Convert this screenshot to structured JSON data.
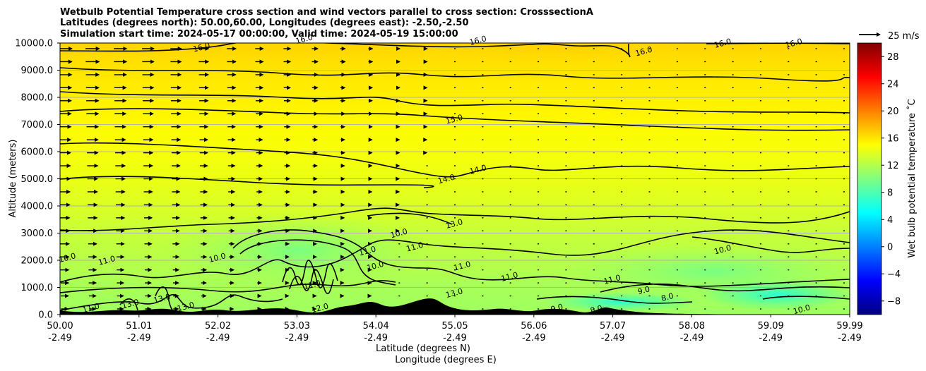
{
  "chart_data": {
    "type": "heatmap",
    "title_lines": [
      "Wetbulb Potential Temperature cross section and wind vectors parallel to cross section: CrosssectionA",
      "Latitudes (degrees north): 50.00,60.00, Longitudes (degrees east): -2.50,-2.50",
      "Simulation start time: 2024-05-17 00:00:00, Valid time: 2024-05-19 15:00:00"
    ],
    "ylabel": "Altitude (meters)",
    "xlabel_lines": [
      "Latitude (degrees N)",
      "Longitude (degrees E)"
    ],
    "ylim": [
      0,
      10000
    ],
    "yticks": [
      "0.0",
      "1000.0",
      "2000.0",
      "3000.0",
      "4000.0",
      "5000.0",
      "6000.0",
      "7000.0",
      "8000.0",
      "9000.0",
      "10000.0"
    ],
    "xticks": [
      {
        "lat": "50.00",
        "lon": "-2.49"
      },
      {
        "lat": "51.01",
        "lon": "-2.49"
      },
      {
        "lat": "52.02",
        "lon": "-2.49"
      },
      {
        "lat": "53.03",
        "lon": "-2.49"
      },
      {
        "lat": "54.04",
        "lon": "-2.49"
      },
      {
        "lat": "55.05",
        "lon": "-2.49"
      },
      {
        "lat": "56.06",
        "lon": "-2.49"
      },
      {
        "lat": "57.07",
        "lon": "-2.49"
      },
      {
        "lat": "58.08",
        "lon": "-2.49"
      },
      {
        "lat": "59.09",
        "lon": "-2.49"
      },
      {
        "lat": "59.99",
        "lon": "-2.49"
      }
    ],
    "grid": "horizontal",
    "colorbar": {
      "label": "Wet bulb potential temperature ˚C",
      "range": [
        -10,
        30
      ],
      "ticks": [
        "−8",
        "−4",
        "0",
        "4",
        "8",
        "12",
        "16",
        "20",
        "24",
        "28"
      ],
      "colormap": "jet"
    },
    "quiver_key": {
      "label": "25 m/s",
      "speed": 25,
      "placement": "top-right"
    },
    "contour_levels": [
      8,
      9,
      10,
      11,
      12,
      13,
      14,
      15,
      16
    ],
    "contour_labels": [
      {
        "text": "16.0",
        "x": 0.18,
        "y": 9750
      },
      {
        "text": "16.0",
        "x": 0.31,
        "y": 10050
      },
      {
        "text": "16.0",
        "x": 0.53,
        "y": 10000
      },
      {
        "text": "16.0",
        "x": 0.74,
        "y": 9600
      },
      {
        "text": "16.0",
        "x": 0.84,
        "y": 9900
      },
      {
        "text": "16.0",
        "x": 0.93,
        "y": 9900
      },
      {
        "text": "15.0",
        "x": 0.5,
        "y": 7100
      },
      {
        "text": "14.0",
        "x": 0.49,
        "y": 4900
      },
      {
        "text": "14.0",
        "x": 0.53,
        "y": 5250
      },
      {
        "text": "13.0",
        "x": 0.5,
        "y": 3250
      },
      {
        "text": "12.0",
        "x": 0.33,
        "y": 150
      },
      {
        "text": "11.0",
        "x": 0.04,
        "y": 150
      },
      {
        "text": "11.0",
        "x": 0.06,
        "y": 1900
      },
      {
        "text": "11.0",
        "x": 0.39,
        "y": 2250
      },
      {
        "text": "11.0",
        "x": 0.32,
        "y": 1000
      },
      {
        "text": "11.0",
        "x": 0.45,
        "y": 2400
      },
      {
        "text": "11.0",
        "x": 0.51,
        "y": 1700
      },
      {
        "text": "11.0",
        "x": 0.57,
        "y": 1300
      },
      {
        "text": "11.0",
        "x": 0.7,
        "y": 1200
      },
      {
        "text": "10.0",
        "x": 0.01,
        "y": 2000
      },
      {
        "text": "10.0",
        "x": 0.2,
        "y": 2000
      },
      {
        "text": "10.0",
        "x": 0.43,
        "y": 2900
      },
      {
        "text": "10.0",
        "x": 0.4,
        "y": 1700
      },
      {
        "text": "10.0",
        "x": 0.84,
        "y": 2300
      },
      {
        "text": "10.0",
        "x": 0.94,
        "y": 100
      },
      {
        "text": "9.0",
        "x": 0.74,
        "y": 800
      },
      {
        "text": "9.0",
        "x": 0.63,
        "y": 150
      },
      {
        "text": "8.0",
        "x": 0.77,
        "y": 550
      },
      {
        "text": "8.0",
        "x": 0.68,
        "y": 100
      },
      {
        "text": "13.0",
        "x": 0.13,
        "y": 500
      },
      {
        "text": "13.0",
        "x": 0.09,
        "y": 300
      },
      {
        "text": "13.0",
        "x": 0.16,
        "y": 200
      },
      {
        "text": "13.0",
        "x": 0.5,
        "y": 700
      }
    ],
    "field_description_points": [
      {
        "lat": 50.0,
        "alt": 9500,
        "theta_w": 16.5
      },
      {
        "lat": 55.0,
        "alt": 8000,
        "theta_w": 15.5
      },
      {
        "lat": 55.0,
        "alt": 5000,
        "theta_w": 14.0
      },
      {
        "lat": 53.5,
        "alt": 2300,
        "theta_w": 10.3
      },
      {
        "lat": 59.0,
        "alt": 500,
        "theta_w": 7.5
      }
    ]
  }
}
